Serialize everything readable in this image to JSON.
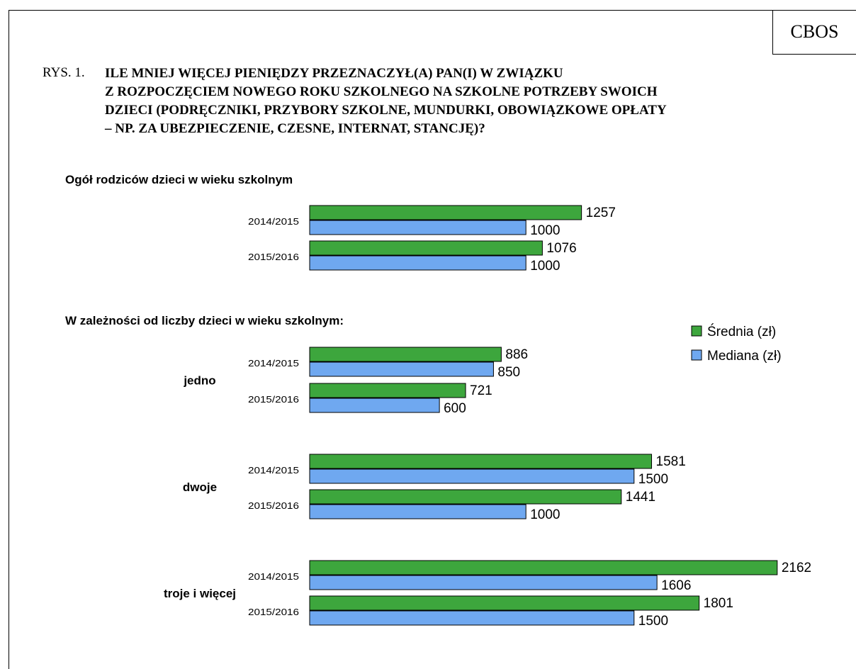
{
  "source_badge": "CBOS",
  "figure": {
    "label": "RYS. 1.",
    "title_lines": [
      "ILE MNIEJ WIĘCEJ PIENIĘDZY PRZEZNACZYŁ(A) PAN(I) W ZWIĄZKU",
      "Z ROZPOCZĘCIEM NOWEGO ROKU SZKOLNEGO NA SZKOLNE POTRZEBY SWOICH",
      "DZIECI (PODRĘCZNIKI, PRZYBORY SZKOLNE, MUNDURKI, OBOWIĄZKOWE OPŁATY",
      "– NP. ZA UBEZPIECZENIE, CZESNE, INTERNAT, STANCJĘ)?"
    ]
  },
  "chart_data": {
    "type": "bar",
    "orientation": "horizontal",
    "legend_position": "right",
    "grid": false,
    "xlim": [
      0,
      2162
    ],
    "colors": {
      "Średnia (zł)": "#3da63d",
      "Mediana (zł)": "#6fa8f0"
    },
    "legend": [
      "Średnia (zł)",
      "Mediana (zł)"
    ],
    "sections": [
      {
        "heading": "Ogół rodziców dzieci  w wieku szkolnym",
        "groups": [
          {
            "name": "",
            "rows": [
              {
                "category": "2014/2015",
                "values": [
                  1257,
                  1000
                ]
              },
              {
                "category": "2015/2016",
                "values": [
                  1076,
                  1000
                ]
              }
            ]
          }
        ]
      },
      {
        "heading": "W zależności od liczby dzieci w wieku szkolnym:",
        "groups": [
          {
            "name": "jedno",
            "rows": [
              {
                "category": "2014/2015",
                "values": [
                  886,
                  850
                ]
              },
              {
                "category": "2015/2016",
                "values": [
                  721,
                  600
                ]
              }
            ]
          },
          {
            "name": "dwoje",
            "rows": [
              {
                "category": "2014/2015",
                "values": [
                  1581,
                  1500
                ]
              },
              {
                "category": "2015/2016",
                "values": [
                  1441,
                  1000
                ]
              }
            ]
          },
          {
            "name": "troje i więcej",
            "rows": [
              {
                "category": "2014/2015",
                "values": [
                  2162,
                  1606
                ]
              },
              {
                "category": "2015/2016",
                "values": [
                  1801,
                  1500
                ]
              }
            ]
          }
        ]
      }
    ]
  }
}
